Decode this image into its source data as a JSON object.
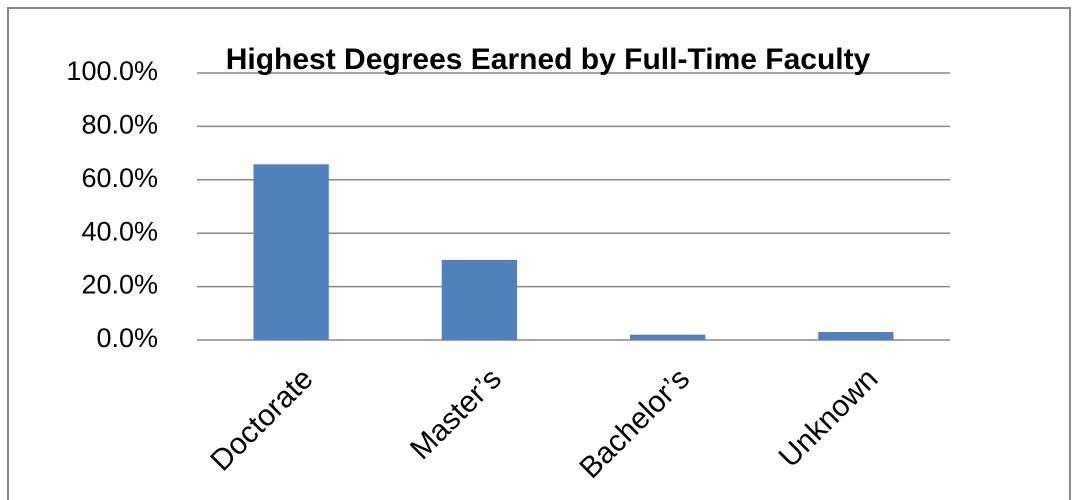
{
  "chart_data": {
    "type": "bar",
    "title": "Highest Degrees Earned by Full-Time Faculty",
    "categories": [
      "Doctorate",
      "Master’s",
      "Bachelor’s",
      "Unknown"
    ],
    "values": [
      65.8,
      30.0,
      2.0,
      3.0
    ],
    "color": "#4f81bd",
    "ylim": [
      0,
      100
    ],
    "yticks": [
      {
        "value": 0,
        "label": "0.0%"
      },
      {
        "value": 20,
        "label": "20.0%"
      },
      {
        "value": 40,
        "label": "40.0%"
      },
      {
        "value": 60,
        "label": "60.0%"
      },
      {
        "value": 80,
        "label": "80.0%"
      },
      {
        "value": 100,
        "label": "100.0%"
      }
    ],
    "grid": true
  }
}
